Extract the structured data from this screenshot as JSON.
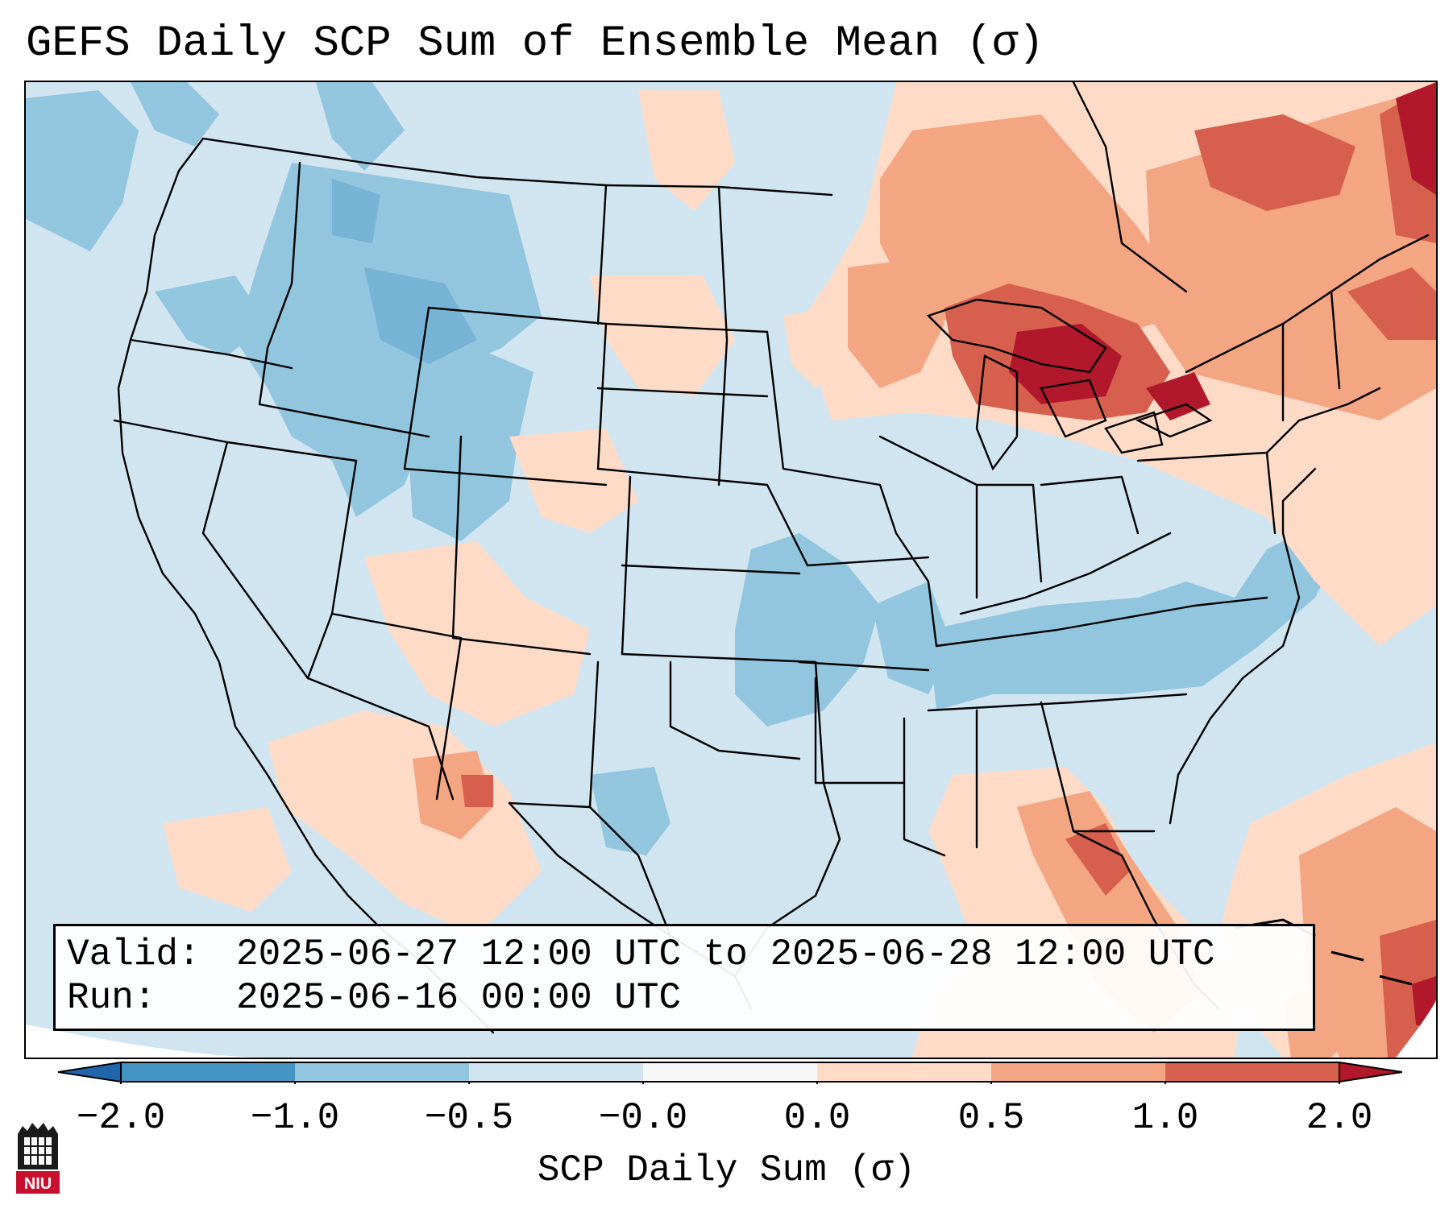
{
  "title": "GEFS Daily SCP Sum of Ensemble Mean (σ)",
  "info": {
    "valid_label": "Valid:",
    "valid_value": "2025-06-27 12:00 UTC to 2025-06-28 12:00 UTC",
    "run_label": "Run:",
    "run_value": "2025-06-16 00:00 UTC"
  },
  "colorbar": {
    "label": "SCP Daily Sum (σ)",
    "ticks": [
      "−2.0",
      "−1.0",
      "−0.5",
      "−0.0",
      "0.0",
      "0.5",
      "1.0",
      "2.0"
    ],
    "colors": [
      "#4393c3",
      "#92c5de",
      "#d1e5f0",
      "#f7f7f7",
      "#fddbc7",
      "#f4a582",
      "#d6604d",
      "#b2182b"
    ],
    "extend": "both"
  },
  "logo": {
    "text": "NIU"
  },
  "map": {
    "region": "Contiguous United States",
    "background_color": "#d1e5f0",
    "positive_areas": "Great Lakes, Northeast, Florida, Gulf of Mexico, western Atlantic, Mexico",
    "negative_areas": "Northern Rockies, Pacific Northwest, Tennessee Valley, Carolinas"
  }
}
